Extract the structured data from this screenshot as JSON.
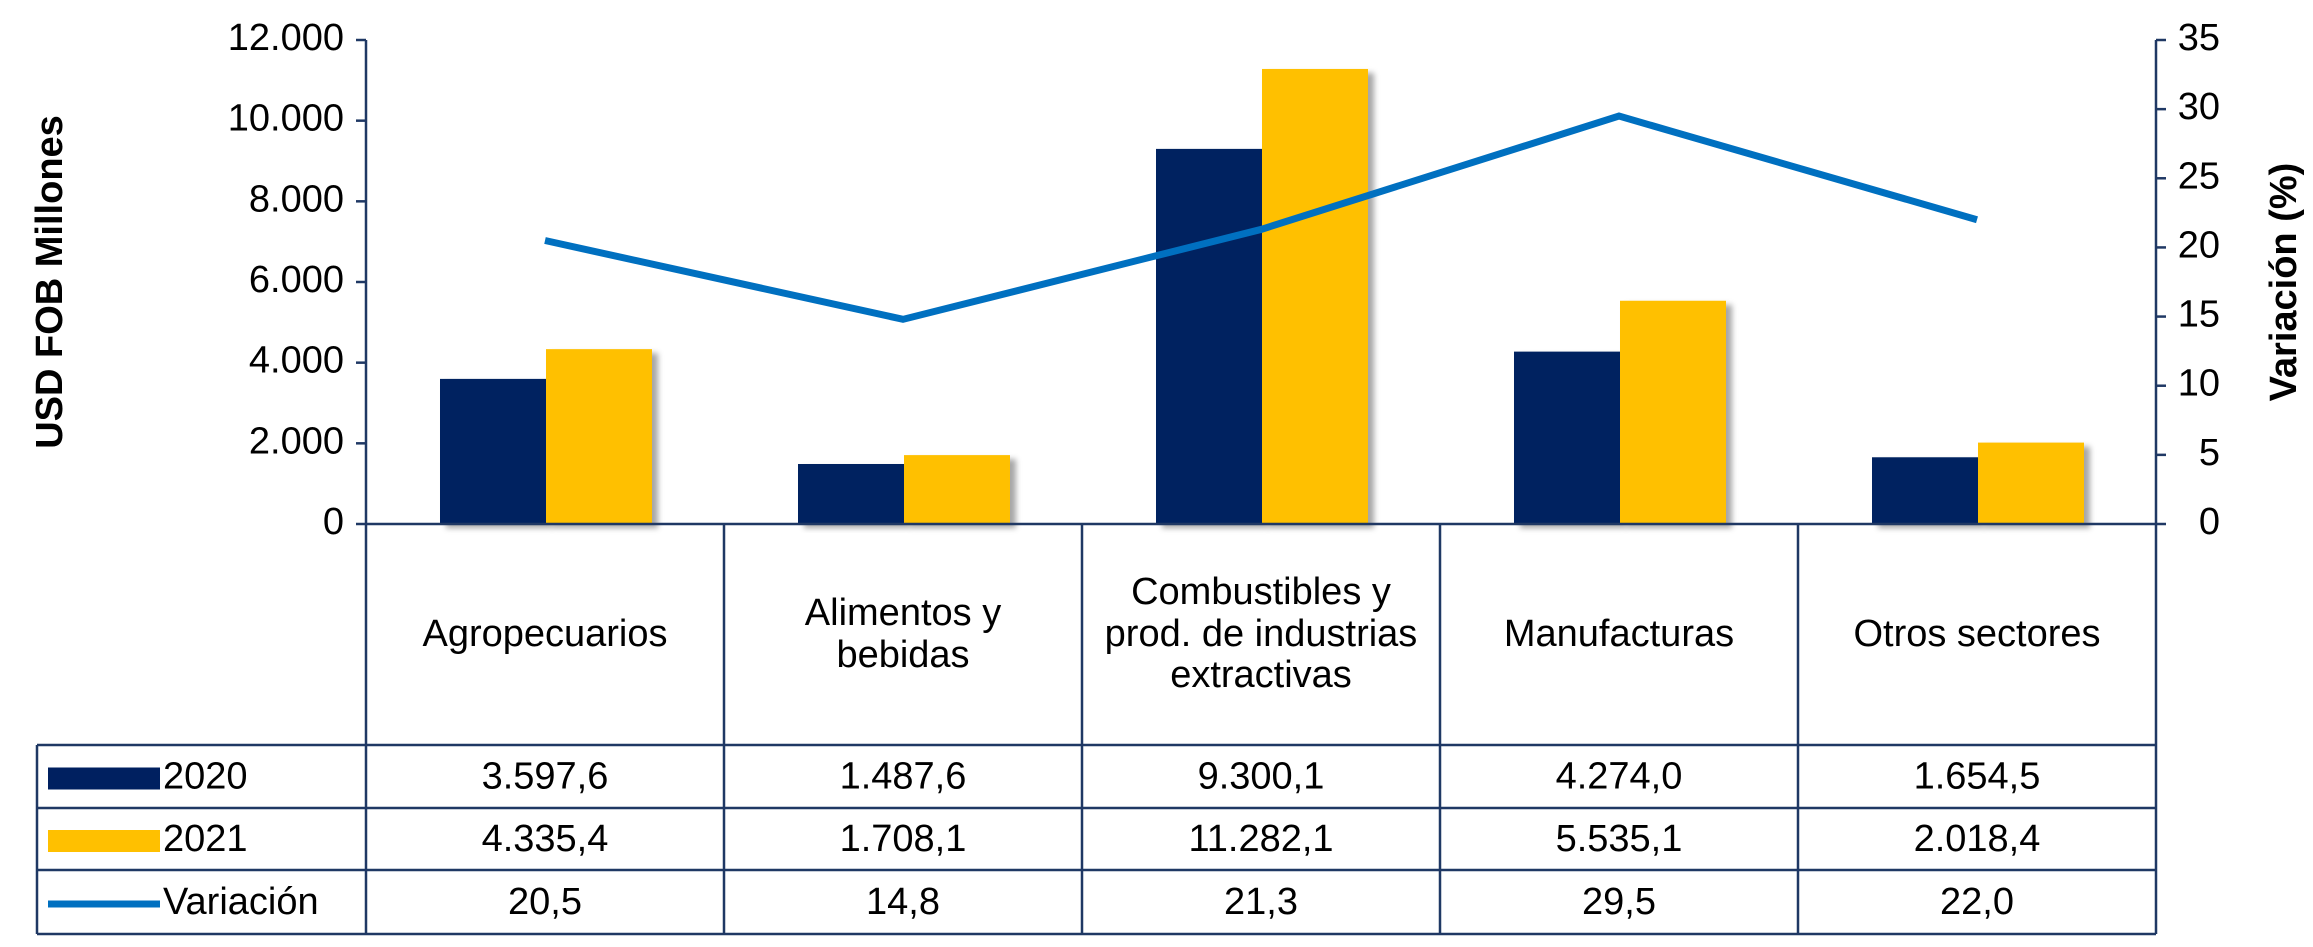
{
  "chart_data": {
    "type": "bar",
    "categories": [
      "Agropecuarios",
      "Alimentos y bebidas",
      "Combustibles y prod. de industrias extractivas",
      "Manufacturas",
      "Otros sectores"
    ],
    "series": [
      {
        "name": "2020",
        "color": "#002060",
        "values": [
          3597.6,
          1487.6,
          9300.1,
          4274.0,
          1654.5
        ],
        "value_labels": [
          "3.597,6",
          "1.487,6",
          "9.300,1",
          "4.274,0",
          "1.654,5"
        ]
      },
      {
        "name": "2021",
        "color": "#ffc000",
        "values": [
          4335.4,
          1708.1,
          11282.1,
          5535.1,
          2018.4
        ],
        "value_labels": [
          "4.335,4",
          "1.708,1",
          "11.282,1",
          "5.535,1",
          "2.018,4"
        ]
      },
      {
        "name": "Variación",
        "type": "line",
        "axis": "y2",
        "color": "#0070c0",
        "values": [
          20.5,
          14.8,
          21.3,
          29.5,
          22.0
        ],
        "value_labels": [
          "20,5",
          "14,8",
          "21,3",
          "29,5",
          "22,0"
        ]
      }
    ],
    "y_label": "USD FOB Millones",
    "y2_label": "Variación (%)",
    "ylim": [
      0,
      12000
    ],
    "yticks": [
      0,
      {
        "value": 2000,
        "label": "2.000"
      },
      {
        "value": 4000,
        "label": "4.000"
      },
      {
        "value": 6000,
        "label": "6.000"
      },
      {
        "value": 8000,
        "label": "8.000"
      },
      {
        "value": 10000,
        "label": "10.000"
      },
      {
        "value": 12000,
        "label": "12.000"
      }
    ],
    "y2lim": [
      0,
      35
    ],
    "y2ticks": [
      0,
      5,
      10,
      15,
      20,
      25,
      30,
      35
    ]
  }
}
